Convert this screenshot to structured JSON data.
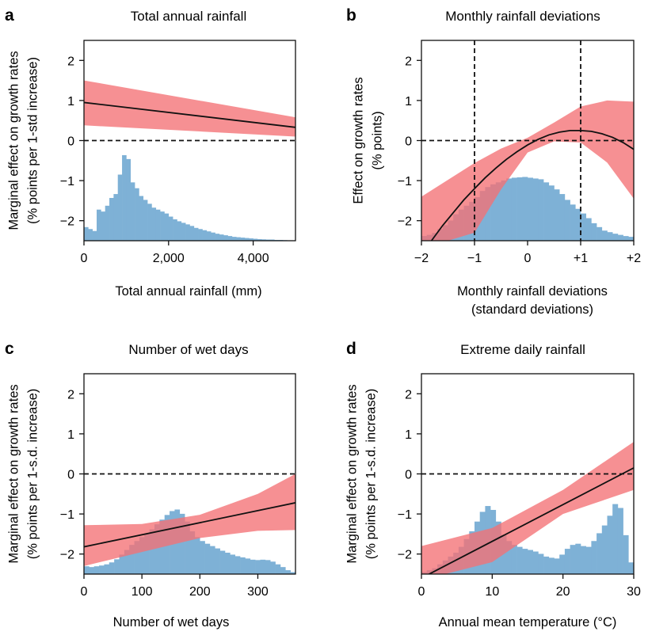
{
  "colors": {
    "band": "#f47174",
    "histogram": "#7eb1d6",
    "line": "#111111",
    "axis": "#111111"
  },
  "chart_data": [
    {
      "letter": "a",
      "type": "line",
      "title": "Total annual rainfall",
      "xlabel": [
        "Total annual rainfall (mm)"
      ],
      "ylabel": [
        "Marginal effect on growth rates",
        "(% points per 1-std increase)"
      ],
      "xlim": [
        0,
        5000
      ],
      "ylim": [
        -2.5,
        2.5
      ],
      "x_ticks": [
        0,
        2000,
        4000
      ],
      "x_tick_labels": [
        "0",
        "2,000",
        "4,000"
      ],
      "y_ticks": [
        -2,
        -1,
        0,
        1,
        2
      ],
      "y_tick_labels": [
        "−2",
        "−1",
        "0",
        "1",
        "2"
      ],
      "vlines": [],
      "line": {
        "x": [
          0,
          5000
        ],
        "y": [
          0.95,
          0.33
        ]
      },
      "band": {
        "x": [
          0,
          5000
        ],
        "lower": [
          0.38,
          0.1
        ],
        "upper": [
          1.5,
          0.58
        ]
      },
      "histogram": {
        "x_start": 0,
        "x_end": 5000,
        "heights": [
          0.35,
          0.3,
          0.25,
          0.8,
          0.75,
          0.9,
          1.1,
          1.2,
          1.7,
          2.2,
          2.1,
          1.5,
          1.35,
          1.15,
          1.05,
          0.95,
          0.85,
          0.8,
          0.75,
          0.7,
          0.62,
          0.55,
          0.5,
          0.46,
          0.42,
          0.38,
          0.33,
          0.3,
          0.27,
          0.24,
          0.21,
          0.18,
          0.16,
          0.14,
          0.12,
          0.1,
          0.09,
          0.08,
          0.07,
          0.06,
          0.05,
          0.04,
          0.035,
          0.03,
          0.03,
          0.02,
          0.02,
          0.015,
          0.01,
          0.01
        ]
      }
    },
    {
      "letter": "b",
      "type": "line",
      "title": "Monthly rainfall deviations",
      "xlabel": [
        "Monthly rainfall deviations",
        "(standard deviations)"
      ],
      "ylabel": [
        "Effect on growth rates",
        "(% points)"
      ],
      "xlim": [
        -2,
        2
      ],
      "ylim": [
        -2.5,
        2.5
      ],
      "x_ticks": [
        -2,
        -1,
        0,
        1,
        2
      ],
      "x_tick_labels": [
        "−2",
        "−1",
        "0",
        "+1",
        "+2"
      ],
      "y_ticks": [
        -2,
        -1,
        0,
        1,
        2
      ],
      "y_tick_labels": [
        "−2",
        "−1",
        "0",
        "1",
        "2"
      ],
      "vlines": [
        -1,
        1
      ],
      "line": {
        "x": [
          -2,
          -1.8,
          -1.6,
          -1.4,
          -1.2,
          -1,
          -0.8,
          -0.6,
          -0.4,
          -0.2,
          0,
          0.2,
          0.4,
          0.6,
          0.8,
          1,
          1.2,
          1.4,
          1.6,
          1.8,
          2
        ],
        "y": [
          -2.85,
          -2.48,
          -2.12,
          -1.8,
          -1.48,
          -1.2,
          -0.93,
          -0.69,
          -0.47,
          -0.28,
          -0.11,
          0.03,
          0.14,
          0.21,
          0.25,
          0.25,
          0.23,
          0.17,
          0.08,
          -0.05,
          -0.22
        ]
      },
      "band": {
        "x": [
          -2,
          -1.5,
          -1,
          -0.5,
          0,
          0.5,
          1,
          1.5,
          2
        ],
        "lower": [
          -2.5,
          -2.5,
          -2.3,
          -1.22,
          -0.3,
          -0.02,
          -0.05,
          -0.55,
          -1.45
        ],
        "upper": [
          -1.4,
          -0.98,
          -0.56,
          -0.2,
          0.07,
          0.45,
          0.85,
          1.0,
          0.97
        ]
      },
      "histogram": {
        "x_start": -2,
        "x_end": 2,
        "heights": [
          0.12,
          0.15,
          0.2,
          0.3,
          0.4,
          0.52,
          0.68,
          0.8,
          0.9,
          1.0,
          1.12,
          1.28,
          1.38,
          1.45,
          1.5,
          1.55,
          1.6,
          1.62,
          1.63,
          1.64,
          1.62,
          1.6,
          1.58,
          1.5,
          1.42,
          1.32,
          1.2,
          1.05,
          0.93,
          0.82,
          0.7,
          0.58,
          0.45,
          0.35,
          0.26,
          0.22,
          0.18,
          0.15,
          0.12,
          0.1
        ]
      }
    },
    {
      "letter": "c",
      "type": "line",
      "title": "Number of wet days",
      "xlabel": [
        "Number of wet days"
      ],
      "ylabel": [
        "Marginal effect on growth rates",
        "(% points per 1-s.d. increase)"
      ],
      "xlim": [
        0,
        365
      ],
      "ylim": [
        -2.5,
        2.5
      ],
      "x_ticks": [
        0,
        100,
        200,
        300
      ],
      "x_tick_labels": [
        "0",
        "100",
        "200",
        "300"
      ],
      "y_ticks": [
        -2,
        -1,
        0,
        1,
        2
      ],
      "y_tick_labels": [
        "−2",
        "−1",
        "0",
        "1",
        "2"
      ],
      "vlines": [],
      "line": {
        "x": [
          0,
          365
        ],
        "y": [
          -1.82,
          -0.72
        ]
      },
      "band": {
        "x": [
          0,
          100,
          200,
          300,
          365
        ],
        "lower": [
          -2.3,
          -1.95,
          -1.6,
          -1.42,
          -1.4
        ],
        "upper": [
          -1.28,
          -1.25,
          -1.02,
          -0.5,
          0.0
        ]
      },
      "histogram": {
        "x_start": 0,
        "x_end": 365,
        "heights": [
          0.2,
          0.18,
          0.2,
          0.22,
          0.25,
          0.3,
          0.38,
          0.5,
          0.62,
          0.75,
          0.85,
          0.95,
          1.05,
          1.15,
          1.28,
          1.4,
          1.52,
          1.62,
          1.66,
          1.55,
          1.35,
          1.1,
          0.95,
          0.85,
          0.78,
          0.72,
          0.66,
          0.6,
          0.55,
          0.5,
          0.46,
          0.43,
          0.4,
          0.37,
          0.36,
          0.37,
          0.36,
          0.32,
          0.25,
          0.18,
          0.1,
          0.05
        ]
      }
    },
    {
      "letter": "d",
      "type": "line",
      "title": "Extreme daily rainfall",
      "xlabel": [
        "Annual mean temperature (°C)"
      ],
      "ylabel": [
        "Marginal effect on growth rates",
        "(% points per 1-s.d. increase)"
      ],
      "xlim": [
        0,
        30
      ],
      "ylim": [
        -2.5,
        2.5
      ],
      "x_ticks": [
        0,
        10,
        20,
        30
      ],
      "x_tick_labels": [
        "0",
        "10",
        "20",
        "30"
      ],
      "y_ticks": [
        -2,
        -1,
        0,
        1,
        2
      ],
      "y_tick_labels": [
        "−2",
        "−1",
        "0",
        "1",
        "2"
      ],
      "vlines": [],
      "line": {
        "x": [
          0,
          30
        ],
        "y": [
          -2.6,
          0.15
        ]
      },
      "band": {
        "x": [
          0,
          10,
          20,
          30
        ],
        "lower": [
          -2.65,
          -2.2,
          -1.0,
          -0.4
        ],
        "upper": [
          -1.8,
          -1.35,
          -0.4,
          0.8
        ]
      },
      "histogram": {
        "x_start": 0,
        "x_end": 30,
        "heights": [
          0.05,
          0.1,
          0.15,
          0.25,
          0.35,
          0.45,
          0.55,
          0.7,
          0.9,
          1.1,
          1.35,
          1.6,
          1.75,
          1.65,
          1.35,
          1.0,
          0.85,
          0.75,
          0.7,
          0.65,
          0.62,
          0.58,
          0.52,
          0.45,
          0.42,
          0.4,
          0.5,
          0.65,
          0.75,
          0.78,
          0.72,
          0.7,
          0.85,
          1.05,
          1.25,
          1.5,
          1.8,
          1.7,
          1.0,
          0.3
        ]
      }
    }
  ]
}
